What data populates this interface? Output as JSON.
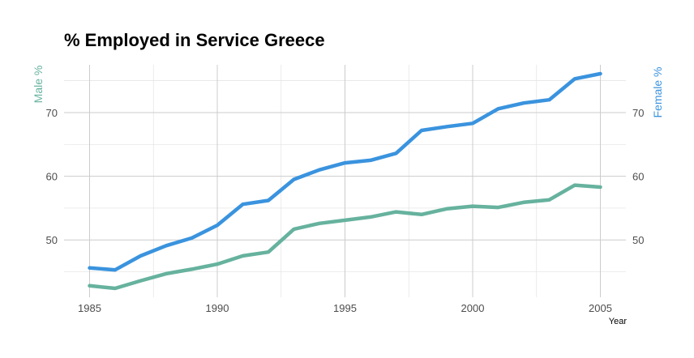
{
  "chart_data": {
    "type": "line",
    "title": "% Employed in Service Greece",
    "xlabel": "Year",
    "ylabel_left": "Male %",
    "ylabel_right": "Female %",
    "x": [
      1985,
      1986,
      1987,
      1988,
      1989,
      1990,
      1991,
      1992,
      1993,
      1994,
      1995,
      1996,
      1997,
      1998,
      1999,
      2000,
      2001,
      2002,
      2003,
      2004,
      2005
    ],
    "xticks": [
      1985,
      1990,
      1995,
      2000,
      2005
    ],
    "yticks": [
      50,
      60,
      70
    ],
    "xlim": [
      1984,
      2006
    ],
    "ylim": [
      41,
      77.5
    ],
    "grid": true,
    "series": [
      {
        "name": "Male %",
        "color": "#66b29e",
        "values": [
          42.8,
          42.4,
          43.6,
          44.7,
          45.4,
          46.2,
          47.5,
          48.1,
          51.7,
          52.6,
          53.1,
          53.6,
          54.4,
          54.0,
          54.9,
          55.3,
          55.1,
          55.9,
          56.3,
          58.6,
          58.3
        ]
      },
      {
        "name": "Female %",
        "color": "#3a93de",
        "values": [
          45.6,
          45.3,
          47.5,
          49.1,
          50.3,
          52.3,
          55.6,
          56.2,
          59.5,
          61.0,
          62.1,
          62.5,
          63.6,
          67.2,
          67.8,
          68.3,
          70.6,
          71.5,
          72.0,
          75.3,
          76.1
        ]
      }
    ]
  }
}
